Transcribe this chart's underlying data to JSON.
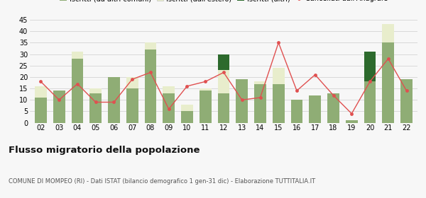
{
  "years": [
    "02",
    "03",
    "04",
    "05",
    "06",
    "07",
    "08",
    "09",
    "10",
    "11",
    "12",
    "13",
    "14",
    "15",
    "16",
    "17",
    "18",
    "19",
    "20",
    "21",
    "22"
  ],
  "iscritti_altri_comuni": [
    11,
    14,
    28,
    13,
    20,
    15,
    32,
    13,
    5,
    14,
    13,
    19,
    17,
    17,
    10,
    12,
    13,
    1,
    18,
    35,
    19
  ],
  "iscritti_estero": [
    5,
    0,
    3,
    2,
    0,
    5,
    3,
    3,
    3,
    1,
    10,
    0,
    1,
    7,
    0,
    0,
    0,
    0,
    0,
    8,
    0
  ],
  "iscritti_altri": [
    0,
    0,
    0,
    0,
    0,
    0,
    0,
    0,
    0,
    0,
    7,
    0,
    0,
    0,
    0,
    0,
    0,
    0,
    13,
    0,
    0
  ],
  "cancellati": [
    18,
    10,
    17,
    9,
    9,
    19,
    22,
    6,
    16,
    18,
    22,
    10,
    11,
    35,
    14,
    21,
    12,
    4,
    18,
    28,
    14
  ],
  "color_altri_comuni": "#8fad75",
  "color_estero": "#e8edcc",
  "color_altri": "#2d6a2d",
  "color_cancellati": "#e05050",
  "color_grid": "#cccccc",
  "ylim": [
    0,
    45
  ],
  "yticks": [
    0,
    5,
    10,
    15,
    20,
    25,
    30,
    35,
    40,
    45
  ],
  "title": "Flusso migratorio della popolazione",
  "subtitle": "COMUNE DI MOMPEO (RI) - Dati ISTAT (bilancio demografico 1 gen-31 dic) - Elaborazione TUTTITALIA.IT",
  "bg_color": "#f7f7f7"
}
